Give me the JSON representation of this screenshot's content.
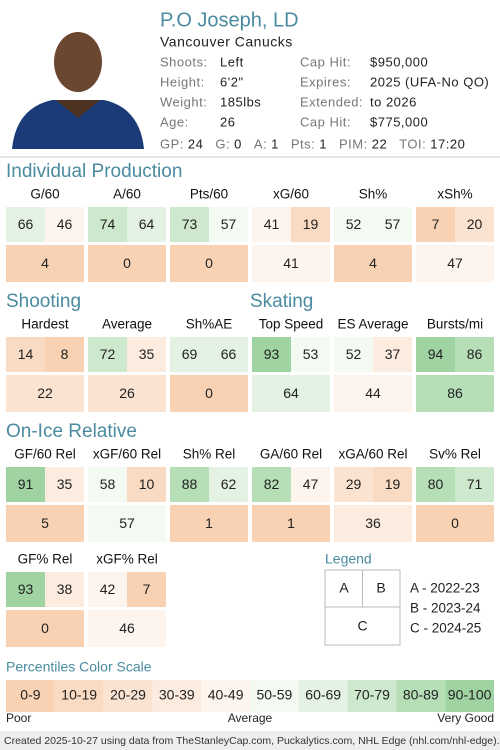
{
  "header": {
    "name": "P.O Joseph, LD",
    "team": "Vancouver Canucks",
    "info": [
      [
        "Shoots:",
        "Left",
        "Cap Hit:",
        "$950,000"
      ],
      [
        "Height:",
        "6'2\"",
        "Expires:",
        "2025 (UFA-No QO)"
      ],
      [
        "Weight:",
        "185lbs",
        "Extended:",
        "to 2026"
      ],
      [
        "Age:",
        "26",
        "Cap Hit:",
        "$775,000"
      ]
    ],
    "stats": [
      {
        "label": "GP:",
        "value": "24"
      },
      {
        "label": "G:",
        "value": "0"
      },
      {
        "label": "A:",
        "value": "1"
      },
      {
        "label": "Pts:",
        "value": "1"
      },
      {
        "label": "PIM:",
        "value": "22"
      },
      {
        "label": "TOI:",
        "value": "17:20"
      }
    ]
  },
  "sections": [
    {
      "title": "Individual Production",
      "metrics": [
        {
          "name": "G/60",
          "a": 66,
          "b": 46,
          "c": 4
        },
        {
          "name": "A/60",
          "a": 74,
          "b": 64,
          "c": 0
        },
        {
          "name": "Pts/60",
          "a": 73,
          "b": 57,
          "c": 0
        },
        {
          "name": "xG/60",
          "a": 41,
          "b": 19,
          "c": 41
        },
        {
          "name": "Sh%",
          "a": 52,
          "b": 57,
          "c": 4
        },
        {
          "name": "xSh%",
          "a": 7,
          "b": 20,
          "c": 47
        }
      ]
    },
    {
      "title": "Shooting",
      "metrics": [
        {
          "name": "Hardest",
          "a": 14,
          "b": 8,
          "c": 22
        },
        {
          "name": "Average",
          "a": 72,
          "b": 35,
          "c": 26
        },
        {
          "name": "Sh%AE",
          "a": 69,
          "b": 66,
          "c": 0
        }
      ]
    },
    {
      "title": "Skating",
      "metrics": [
        {
          "name": "Top Speed",
          "a": 93,
          "b": 53,
          "c": 64
        },
        {
          "name": "ES Average",
          "a": 52,
          "b": 37,
          "c": 44
        },
        {
          "name": "Bursts/mi",
          "a": 94,
          "b": 86,
          "c": 86
        }
      ]
    },
    {
      "title": "On-Ice Relative",
      "metrics": [
        {
          "name": "GF/60 Rel",
          "a": 91,
          "b": 35,
          "c": 5
        },
        {
          "name": "xGF/60 Rel",
          "a": 58,
          "b": 10,
          "c": 57
        },
        {
          "name": "Sh% Rel",
          "a": 88,
          "b": 62,
          "c": 1
        },
        {
          "name": "GA/60 Rel",
          "a": 82,
          "b": 47,
          "c": 1
        },
        {
          "name": "xGA/60 Rel",
          "a": 29,
          "b": 19,
          "c": 36
        },
        {
          "name": "Sv% Rel",
          "a": 80,
          "b": 71,
          "c": 0
        },
        {
          "name": "GF% Rel",
          "a": 93,
          "b": 38,
          "c": 0
        },
        {
          "name": "xGF% Rel",
          "a": 42,
          "b": 7,
          "c": 46
        }
      ]
    }
  ],
  "legend": {
    "title": "Legend",
    "keys": [
      "A",
      "B",
      "C"
    ],
    "entries": [
      "A - 2022-23",
      "B - 2023-24",
      "C - 2024-25"
    ]
  },
  "color_scale": {
    "title": "Percentiles Color Scale",
    "bins": [
      "0-9",
      "10-19",
      "20-29",
      "30-39",
      "40-49",
      "50-59",
      "60-69",
      "70-79",
      "80-89",
      "90-100"
    ],
    "colors": [
      "#f8d2b3",
      "#f9dac2",
      "#fbe3d1",
      "#fcebdf",
      "#fdf4ee",
      "#f3faf2",
      "#e3f2e2",
      "#cde8cd",
      "#b6deb7",
      "#9fd3a1"
    ],
    "labels": [
      "Poor",
      "Average",
      "Very Good"
    ]
  },
  "footer": "Created 2025-10-27 using data from TheStanleyCap.com, Puckalytics.com, NHL Edge (nhl.com/nhl-edge)."
}
